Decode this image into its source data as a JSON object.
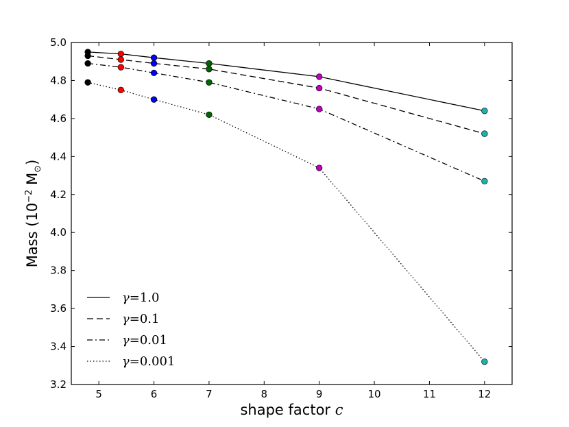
{
  "chart_data": {
    "type": "line",
    "xlabel": "shape factor",
    "xlabel_symbol": "c",
    "ylabel": "Mass (10",
    "ylabel_exponent": "−2",
    "ylabel_unit": "M",
    "ylabel_unit_symbol": "⊙",
    "ylabel_close": ")",
    "xlim": [
      4.5,
      12.5
    ],
    "ylim": [
      3.2,
      5.0
    ],
    "xticks": [
      5,
      6,
      7,
      8,
      9,
      10,
      11,
      12
    ],
    "yticks": [
      3.2,
      3.4,
      3.6,
      3.8,
      4.0,
      4.2,
      4.4,
      4.6,
      4.8,
      5.0
    ],
    "x": [
      4.8,
      5.4,
      6,
      7,
      9,
      12
    ],
    "point_colors": [
      "#000000",
      "#ff0000",
      "#0000ff",
      "#006400",
      "#bf00bf",
      "#20b2aa"
    ],
    "legend_position": "bottom-left",
    "series": [
      {
        "name": "γ",
        "op": "=",
        "value": "1.0",
        "dash": "solid",
        "values": [
          4.95,
          4.94,
          4.92,
          4.89,
          4.82,
          4.64
        ]
      },
      {
        "name": "γ",
        "op": "=",
        "value": "0.1",
        "dash": "dashed",
        "values": [
          4.93,
          4.91,
          4.89,
          4.86,
          4.76,
          4.52
        ]
      },
      {
        "name": "γ",
        "op": "=",
        "value": "0.01",
        "dash": "dashdot",
        "values": [
          4.89,
          4.87,
          4.84,
          4.79,
          4.65,
          4.27
        ]
      },
      {
        "name": "γ",
        "op": "=",
        "value": "0.001",
        "dash": "dotted",
        "values": [
          4.79,
          4.75,
          4.7,
          4.62,
          4.34,
          3.32
        ]
      }
    ]
  }
}
